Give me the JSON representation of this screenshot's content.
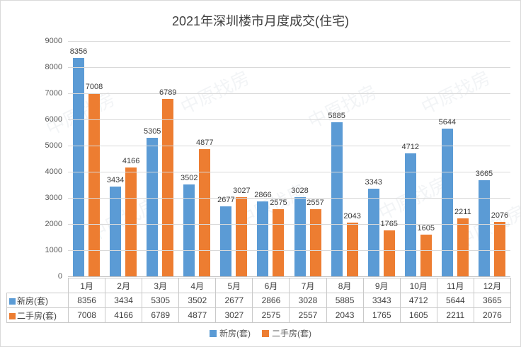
{
  "title": "2021年深圳楼市月度成交(住宅)",
  "watermark_text": "中原找房",
  "colors": {
    "series1": "#5B9BD5",
    "series2": "#ED7D31",
    "gridline": "#d9d9d9",
    "table_border": "#c9c9c9"
  },
  "chart_data": {
    "type": "bar",
    "title": "2021年深圳楼市月度成交(住宅)",
    "categories": [
      "1月",
      "2月",
      "3月",
      "4月",
      "5月",
      "6月",
      "7月",
      "8月",
      "9月",
      "10月",
      "11月",
      "12月"
    ],
    "series": [
      {
        "name": "新房(套)",
        "color": "#5B9BD5",
        "values": [
          8356,
          3434,
          5305,
          3502,
          2677,
          2866,
          3028,
          5885,
          3343,
          4712,
          5644,
          3665
        ]
      },
      {
        "name": "二手房(套)",
        "color": "#ED7D31",
        "values": [
          7008,
          4166,
          6789,
          4877,
          3027,
          2575,
          2557,
          2043,
          1765,
          1605,
          2211,
          2076
        ]
      }
    ],
    "ylim": [
      0,
      9000
    ],
    "ytick_step": 1000,
    "yticks": [
      "0",
      "1000",
      "2000",
      "3000",
      "4000",
      "5000",
      "6000",
      "7000",
      "8000",
      "9000"
    ],
    "grid": true,
    "data_labels": true,
    "data_table": true,
    "legend_position": "bottom"
  },
  "legend": {
    "items": [
      {
        "label": "新房(套)",
        "color": "#5B9BD5"
      },
      {
        "label": "二手房(套)",
        "color": "#ED7D31"
      }
    ]
  }
}
